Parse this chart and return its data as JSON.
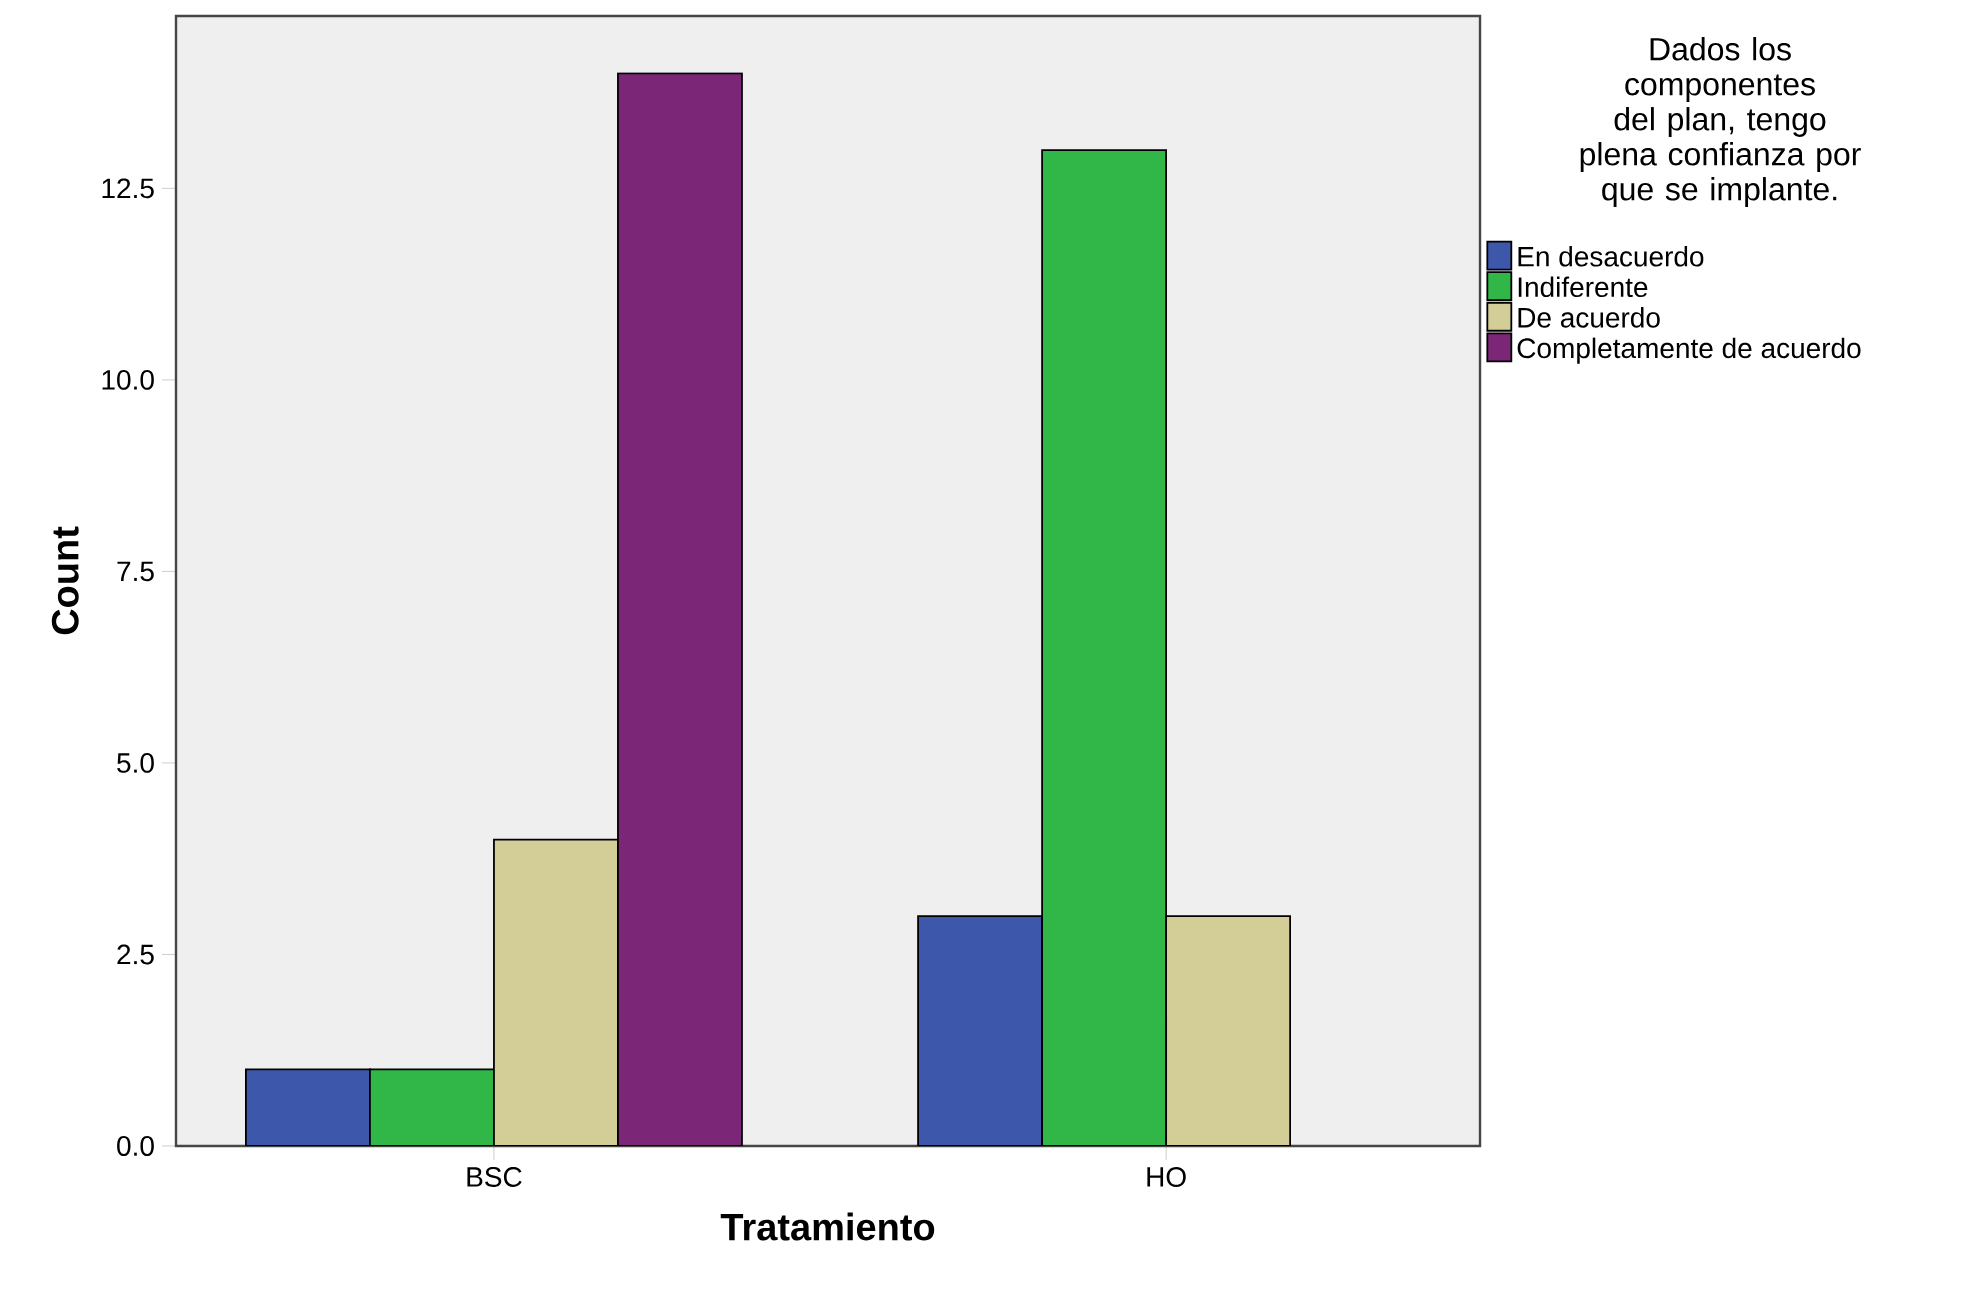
{
  "chart_data": {
    "type": "bar",
    "xlabel": "Tratamiento",
    "ylabel": "Count",
    "legend_title": "Dados los componentes del plan, tengo plena confianza por que se implante.",
    "categories": [
      "BSC",
      "HO"
    ],
    "series": [
      {
        "name": "En desacuerdo",
        "color": "#3d58aa",
        "values": [
          1,
          3
        ]
      },
      {
        "name": "Indiferente",
        "color": "#31b748",
        "values": [
          1,
          13
        ]
      },
      {
        "name": "De acuerdo",
        "color": "#d3ce97",
        "values": [
          4,
          3
        ]
      },
      {
        "name": "Completamente de acuerdo",
        "color": "#7b2677",
        "values": [
          14,
          null
        ]
      }
    ],
    "ylim": [
      0,
      14.75
    ],
    "yticks": [
      {
        "value": 0,
        "label": "0.0"
      },
      {
        "value": 2.5,
        "label": "2.5"
      },
      {
        "value": 5,
        "label": "5.0"
      },
      {
        "value": 7.5,
        "label": "7.5"
      },
      {
        "value": 10,
        "label": "10.0"
      },
      {
        "value": 12.5,
        "label": "12.5"
      }
    ],
    "legend": "right"
  }
}
